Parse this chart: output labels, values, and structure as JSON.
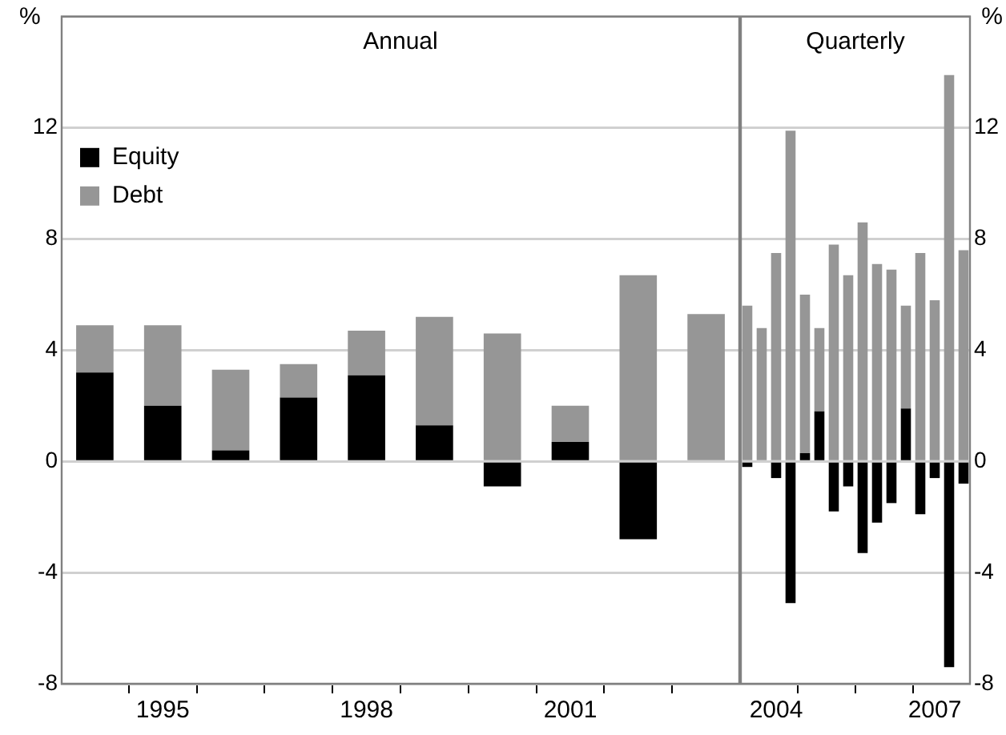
{
  "chart_data": [
    {
      "type": "bar",
      "title": "Annual",
      "ylabel": "%",
      "stacked": true,
      "grid": "y",
      "legend": "top left",
      "categories": [
        null,
        "1995",
        null,
        null,
        "1998",
        null,
        null,
        "2001",
        null,
        null
      ],
      "ylim": [
        -8,
        16
      ],
      "yticks": [
        -8,
        -4,
        0,
        4,
        8,
        12,
        {
          "value": 16,
          "label": null
        }
      ],
      "series": [
        {
          "name": "Equity",
          "color": "#000000",
          "values": [
            3.2,
            2.0,
            0.4,
            2.3,
            3.1,
            1.3,
            -0.9,
            0.7,
            -2.8,
            0
          ]
        },
        {
          "name": "Debt",
          "color": "#969696",
          "values": [
            1.7,
            2.9,
            2.9,
            1.2,
            1.6,
            3.9,
            4.6,
            1.3,
            6.7,
            5.3
          ]
        }
      ]
    },
    {
      "type": "bar",
      "title": "Quarterly",
      "ylabel": "%",
      "stacked": true,
      "grid": "y",
      "categories": [
        null,
        null,
        "2004",
        null,
        null,
        null,
        null,
        null,
        null,
        null,
        null,
        null,
        null,
        "2007",
        null,
        null
      ],
      "ylim": [
        -8,
        16
      ],
      "yticks": [
        -8,
        -4,
        0,
        4,
        8,
        12,
        {
          "value": 16,
          "label": null
        }
      ],
      "series": [
        {
          "color": "#000000",
          "values": [
            -0.2,
            0,
            -0.6,
            -5.1,
            0.3,
            1.8,
            -1.8,
            -0.9,
            -3.3,
            -2.2,
            -1.5,
            1.9,
            -1.9,
            -0.6,
            -7.4,
            -0.8
          ]
        },
        {
          "color": "#969696",
          "values": [
            5.6,
            4.8,
            7.5,
            11.9,
            5.7,
            3.0,
            7.8,
            6.7,
            8.6,
            7.1,
            6.9,
            3.7,
            7.5,
            5.8,
            13.9,
            7.6
          ]
        }
      ]
    }
  ]
}
